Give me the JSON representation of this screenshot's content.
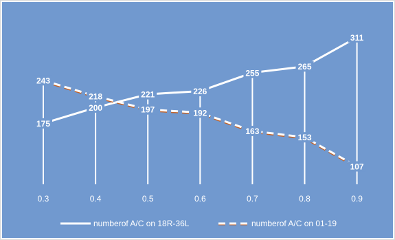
{
  "chart_data": {
    "type": "line",
    "x": [
      "0.3",
      "0.4",
      "0.5",
      "0.6",
      "0.7",
      "0.8",
      "0.9"
    ],
    "ylim": [
      0,
      350
    ],
    "grid": "vertical drop lines at each x",
    "legend_position": "bottom",
    "background_color": "#7199CF",
    "series": [
      {
        "name": "numberof A/C on 18R-36L",
        "values": [
          175,
          200,
          221,
          226,
          255,
          265,
          311
        ],
        "color": "#FFFFFF",
        "style": "solid"
      },
      {
        "name": "numberof A/C on 01-19",
        "values": [
          243,
          218,
          197,
          192,
          163,
          153,
          107
        ],
        "color": "#FFFFFF",
        "shadow_color": "#C0632B",
        "style": "dashed"
      }
    ]
  }
}
